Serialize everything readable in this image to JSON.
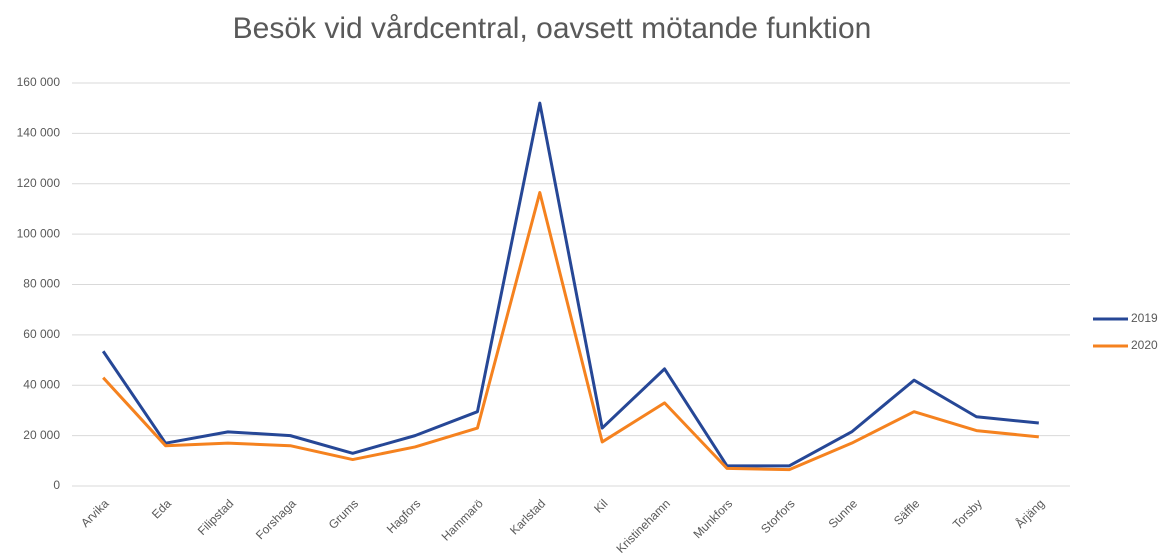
{
  "chart_data": {
    "type": "line",
    "title": "Besök vid vårdcentral, oavsett mötande funktion",
    "categories": [
      "Arvika",
      "Eda",
      "Filipstad",
      "Forshaga",
      "Grums",
      "Hagfors",
      "Hammarö",
      "Karlstad",
      "Kil",
      "Kristinehamn",
      "Munkfors",
      "Storfors",
      "Sunne",
      "Säffle",
      "Torsby",
      "Årjäng"
    ],
    "series": [
      {
        "name": "2019",
        "color": "#264796",
        "values": [
          53500,
          17000,
          21500,
          20000,
          13000,
          20000,
          29500,
          152000,
          23000,
          46500,
          8000,
          8000,
          21500,
          42000,
          27500,
          25000
        ]
      },
      {
        "name": "2020",
        "color": "#f5821f",
        "values": [
          43000,
          16000,
          17000,
          16000,
          10500,
          15500,
          23000,
          116500,
          17500,
          33000,
          7000,
          6500,
          17000,
          29500,
          22000,
          19500
        ]
      }
    ],
    "ylim": [
      0,
      160000
    ],
    "yticks": [
      0,
      {
        "value": 20000,
        "label": "20 000"
      },
      {
        "value": 40000,
        "label": "40 000"
      },
      {
        "value": 60000,
        "label": "60 000"
      },
      {
        "value": 80000,
        "label": "80 000"
      },
      {
        "value": 100000,
        "label": "100 000"
      },
      {
        "value": 120000,
        "label": "120 000"
      },
      {
        "value": 140000,
        "label": "140 000"
      },
      {
        "value": 160000,
        "label": "160 000"
      }
    ],
    "grid": true,
    "legend": "right"
  }
}
